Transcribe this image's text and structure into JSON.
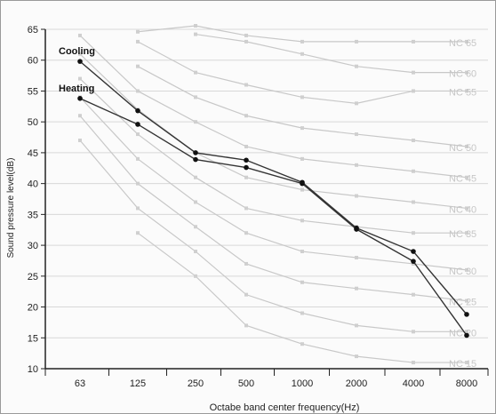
{
  "chart_data": {
    "type": "line",
    "xlabel": "Octabe band center frequency(Hz)",
    "ylabel": "Sound pressure level(dB)",
    "categories": [
      "63",
      "125",
      "250",
      "500",
      "1000",
      "2000",
      "4000",
      "8000"
    ],
    "ylim": [
      10,
      65
    ],
    "yticks": [
      10,
      15,
      20,
      25,
      30,
      35,
      40,
      45,
      50,
      55,
      60,
      65
    ],
    "grid": true,
    "series": [
      {
        "name": "Cooling",
        "values": [
          59.8,
          51.8,
          45.0,
          43.8,
          40.2,
          32.8,
          29.0,
          18.8
        ],
        "color": "#333333"
      },
      {
        "name": "Heating",
        "values": [
          53.8,
          49.6,
          43.9,
          42.6,
          40.0,
          32.6,
          27.4,
          15.4
        ],
        "color": "#333333"
      }
    ],
    "reference_curves": [
      {
        "name": "NC 65",
        "values": [
          null,
          64.6,
          67.0,
          64.0,
          63.0,
          63.0,
          63.0,
          63.0
        ]
      },
      {
        "name": "NC 60",
        "values": [
          null,
          null,
          64.2,
          63.0,
          61.0,
          59.0,
          58.0,
          58.0
        ]
      },
      {
        "name": "NC 55",
        "values": [
          null,
          63.0,
          58.0,
          56.0,
          54.0,
          53.0,
          55.0,
          55.0
        ]
      },
      {
        "name": "NC 50",
        "values": [
          null,
          59.0,
          54.0,
          51.0,
          49.0,
          48.0,
          47.0,
          46.0
        ]
      },
      {
        "name": "NC 45",
        "values": [
          64.0,
          55.0,
          50.0,
          46.0,
          44.0,
          43.0,
          42.0,
          41.0
        ]
      },
      {
        "name": "NC 40",
        "values": [
          61.0,
          52.0,
          45.0,
          41.0,
          39.0,
          38.0,
          37.0,
          36.0
        ]
      },
      {
        "name": "NC 35",
        "values": [
          57.0,
          48.0,
          41.0,
          36.0,
          34.0,
          33.0,
          32.0,
          32.0
        ]
      },
      {
        "name": "NC 30",
        "values": [
          54.0,
          44.0,
          37.0,
          32.0,
          29.0,
          28.0,
          27.0,
          26.0
        ]
      },
      {
        "name": "NC 25",
        "values": [
          51.0,
          40.0,
          33.0,
          27.0,
          24.0,
          23.0,
          22.0,
          21.0
        ]
      },
      {
        "name": "NC 20",
        "values": [
          47.0,
          36.0,
          29.0,
          22.0,
          19.0,
          17.0,
          16.0,
          16.0
        ]
      },
      {
        "name": "NC 15",
        "values": [
          null,
          32.0,
          25.0,
          17.0,
          14.0,
          12.0,
          11.0,
          11.0
        ]
      }
    ],
    "colors": {
      "series": "#333333",
      "reference": "#c8c8c8",
      "reference_label": "#c6c6c6",
      "grid": "#d8d8d8",
      "axis": "#222222"
    }
  }
}
